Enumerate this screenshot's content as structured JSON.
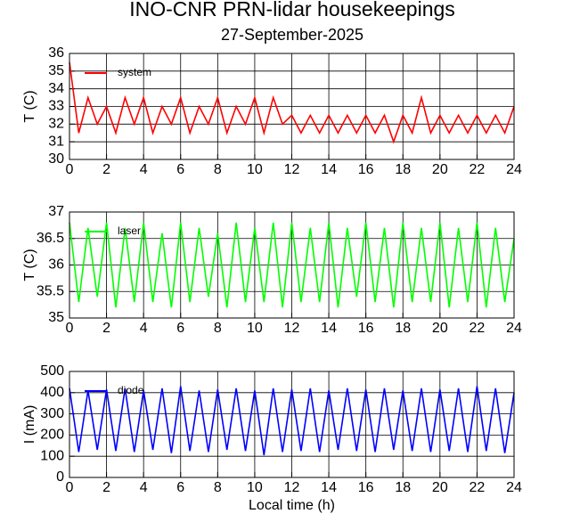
{
  "title": "INO-CNR PRN-lidar housekeepings",
  "subtitle": "27-September-2025",
  "chart_data": [
    {
      "type": "line",
      "ylabel": "T (C)",
      "grid": true,
      "legend": "upper left",
      "xlim": [
        0,
        24
      ],
      "xticks": [
        0,
        2,
        4,
        6,
        8,
        10,
        12,
        14,
        16,
        18,
        20,
        22,
        24
      ],
      "ylim": [
        30,
        36
      ],
      "yticks": [
        30,
        31,
        32,
        33,
        34,
        35,
        36
      ],
      "x": [
        0,
        0.5,
        1,
        1.5,
        2,
        2.5,
        3,
        3.5,
        4,
        4.5,
        5,
        5.5,
        6,
        6.5,
        7,
        7.5,
        8,
        8.5,
        9,
        9.5,
        10,
        10.5,
        11,
        11.5,
        12,
        12.5,
        13,
        13.5,
        14,
        14.5,
        15,
        15.5,
        16,
        16.5,
        17,
        17.5,
        18,
        18.5,
        19,
        19.5,
        20,
        20.5,
        21,
        21.5,
        22,
        22.5,
        23,
        23.5,
        24
      ],
      "series": [
        {
          "name": "system",
          "color": "#ff0000",
          "values": [
            35.5,
            31.5,
            33.5,
            32,
            33,
            31.5,
            33.5,
            32,
            33.5,
            31.5,
            33,
            32,
            33.5,
            31.5,
            33,
            32,
            33.5,
            31.5,
            33,
            32,
            33.5,
            31.5,
            33.5,
            32,
            32.5,
            31.5,
            32.5,
            31.5,
            32.5,
            31.5,
            32.5,
            31.5,
            32.5,
            31.5,
            32.5,
            31,
            32.5,
            31.5,
            33.5,
            31.5,
            32.5,
            31.5,
            32.5,
            31.5,
            32.5,
            31.5,
            32.5,
            31.5,
            33
          ]
        }
      ]
    },
    {
      "type": "line",
      "ylabel": "T (C)",
      "grid": true,
      "legend": "upper left",
      "xlim": [
        0,
        24
      ],
      "xticks": [
        0,
        2,
        4,
        6,
        8,
        10,
        12,
        14,
        16,
        18,
        20,
        22,
        24
      ],
      "ylim": [
        35,
        37
      ],
      "yticks": [
        35,
        35.5,
        36,
        36.5,
        37
      ],
      "x": [
        0,
        0.5,
        1,
        1.5,
        2,
        2.5,
        3,
        3.5,
        4,
        4.5,
        5,
        5.5,
        6,
        6.5,
        7,
        7.5,
        8,
        8.5,
        9,
        9.5,
        10,
        10.5,
        11,
        11.5,
        12,
        12.5,
        13,
        13.5,
        14,
        14.5,
        15,
        15.5,
        16,
        16.5,
        17,
        17.5,
        18,
        18.5,
        19,
        19.5,
        20,
        20.5,
        21,
        21.5,
        22,
        22.5,
        23,
        23.5,
        24
      ],
      "series": [
        {
          "name": "laser",
          "color": "#00ff00",
          "values": [
            36.8,
            35.3,
            36.7,
            35.4,
            36.8,
            35.2,
            36.7,
            35.3,
            36.8,
            35.3,
            36.6,
            35.2,
            36.8,
            35.3,
            36.7,
            35.4,
            36.6,
            35.2,
            36.8,
            35.3,
            36.7,
            35.3,
            36.8,
            35.2,
            36.8,
            35.3,
            36.7,
            35.3,
            36.8,
            35.2,
            36.7,
            35.4,
            36.8,
            35.3,
            36.7,
            35.2,
            36.8,
            35.3,
            36.7,
            35.3,
            36.8,
            35.2,
            36.7,
            35.3,
            36.8,
            35.2,
            36.7,
            35.3,
            36.5
          ]
        }
      ]
    },
    {
      "type": "line",
      "ylabel": "I (mA)",
      "xlabel": "Local time (h)",
      "grid": true,
      "legend": "upper left",
      "xlim": [
        0,
        24
      ],
      "xticks": [
        0,
        2,
        4,
        6,
        8,
        10,
        12,
        14,
        16,
        18,
        20,
        22,
        24
      ],
      "ylim": [
        0,
        500
      ],
      "yticks": [
        0,
        100,
        200,
        300,
        400,
        500
      ],
      "x": [
        0,
        0.5,
        1,
        1.5,
        2,
        2.5,
        3,
        3.5,
        4,
        4.5,
        5,
        5.5,
        6,
        6.5,
        7,
        7.5,
        8,
        8.5,
        9,
        9.5,
        10,
        10.5,
        11,
        11.5,
        12,
        12.5,
        13,
        13.5,
        14,
        14.5,
        15,
        15.5,
        16,
        16.5,
        17,
        17.5,
        18,
        18.5,
        19,
        19.5,
        20,
        20.5,
        21,
        21.5,
        22,
        22.5,
        23,
        23.5,
        24
      ],
      "series": [
        {
          "name": "diode",
          "color": "#0000ff",
          "values": [
            420,
            120,
            410,
            130,
            415,
            125,
            420,
            120,
            410,
            130,
            420,
            115,
            430,
            125,
            410,
            120,
            415,
            130,
            420,
            125,
            410,
            105,
            420,
            120,
            415,
            125,
            420,
            120,
            410,
            130,
            420,
            125,
            415,
            120,
            420,
            130,
            410,
            125,
            420,
            120,
            415,
            125,
            420,
            120,
            430,
            125,
            420,
            115,
            400
          ]
        }
      ]
    }
  ]
}
